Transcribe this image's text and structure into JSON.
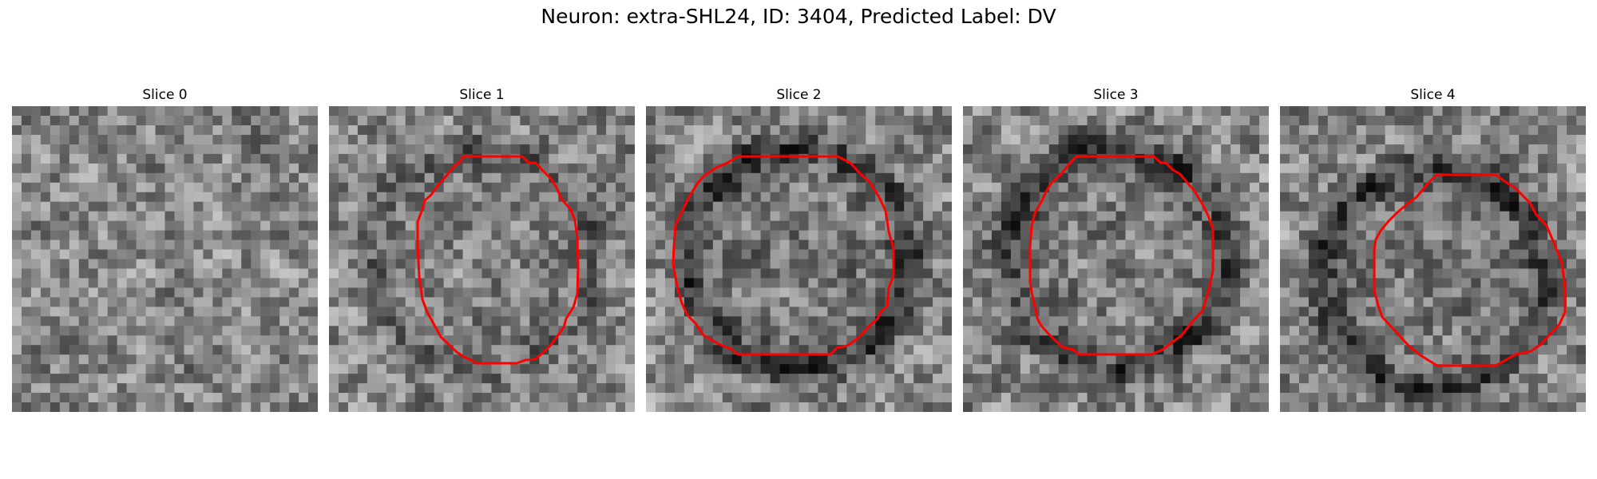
{
  "figure": {
    "title": "Neuron: extra-SHL24, ID: 3404, Predicted Label: DV"
  },
  "panels": [
    {
      "title": "Slice 0",
      "has_contour": false,
      "seed": 11,
      "ring_strength": 0.0
    },
    {
      "title": "Slice 1",
      "has_contour": true,
      "seed": 23,
      "ring_strength": 0.35
    },
    {
      "title": "Slice 2",
      "has_contour": true,
      "seed": 37,
      "ring_strength": 0.9
    },
    {
      "title": "Slice 3",
      "has_contour": true,
      "seed": 41,
      "ring_strength": 0.8
    },
    {
      "title": "Slice 4",
      "has_contour": true,
      "seed": 53,
      "ring_strength": 0.85
    }
  ],
  "colors": {
    "contour": "#ff0000",
    "background": "#ffffff"
  }
}
